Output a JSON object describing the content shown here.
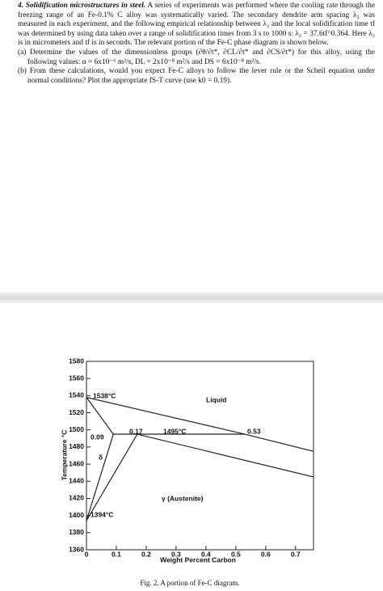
{
  "problem": {
    "heading": "4. Solidification microstructures in steel.",
    "body": "A series of experiments was performed where the cooling rate through the freezing range of an Fe-0.1% C alloy was systematically varied. The secondary dendrite arm spacing λ₂ was measured in each experiment, and the following empirical relationship between λ₂ and the local solidification time tf was determined by using data taken over a range of solidification times from 3 s to 1000 s: λ₂ = 37.6tf^0.364. Here λ₂ is in micrometers and tf is in seconds. The relevant portion of the Fe-C phase diagram is shown below.",
    "parts": [
      "(a) Determine the values of the dimensionless groups (∂θ/∂t*, ∂CL/∂t* and ∂CS/∂t*) for this alloy, using the following values: α = 6x10⁻⁶ m²/s, DL = 2x10⁻⁸ m²/s and DS = 6x10⁻⁸ m²/s.",
      "(b) From these calculations, would you expect Fe-C alloys to follow the lever rule or the Scheil equation under normal conditions? Plot the appropriate fS-T curve (use k0 = 0.19)."
    ]
  },
  "chart_data": {
    "type": "line",
    "caption": "Fig. 2. A portion of Fe-C diagram.",
    "xlabel": "Weight Percent Carbon",
    "ylabel": "Temperature °C",
    "xlim": [
      0,
      0.76
    ],
    "ylim": [
      1360,
      1580
    ],
    "xticks": [
      0,
      0.1,
      0.2,
      0.3,
      0.4,
      0.5,
      0.6,
      0.7
    ],
    "yticks": [
      1360,
      1380,
      1400,
      1420,
      1440,
      1460,
      1480,
      1500,
      1520,
      1540,
      1560,
      1580
    ],
    "series": [
      {
        "color": "#222",
        "x": [
          0,
          0.53,
          0.76
        ],
        "values": [
          1538,
          1495,
          1475
        ]
      },
      {
        "color": "#222",
        "x": [
          0,
          0.09
        ],
        "values": [
          1538,
          1495
        ]
      },
      {
        "color": "#222",
        "x": [
          0.09,
          0.53
        ],
        "values": [
          1495,
          1495
        ]
      },
      {
        "color": "#222",
        "x": [
          0,
          0.09
        ],
        "values": [
          1394,
          1495
        ]
      },
      {
        "color": "#222",
        "x": [
          0,
          0.17
        ],
        "values": [
          1394,
          1495
        ]
      },
      {
        "color": "#222",
        "x": [
          0.17,
          0.76
        ],
        "values": [
          1495,
          1445
        ]
      }
    ],
    "annotations": [
      "1538°C",
      "Liquid",
      "0.09",
      "0.17",
      "1495°C",
      "0.53",
      "δ",
      "γ (Austenite)",
      "1394°C"
    ]
  }
}
